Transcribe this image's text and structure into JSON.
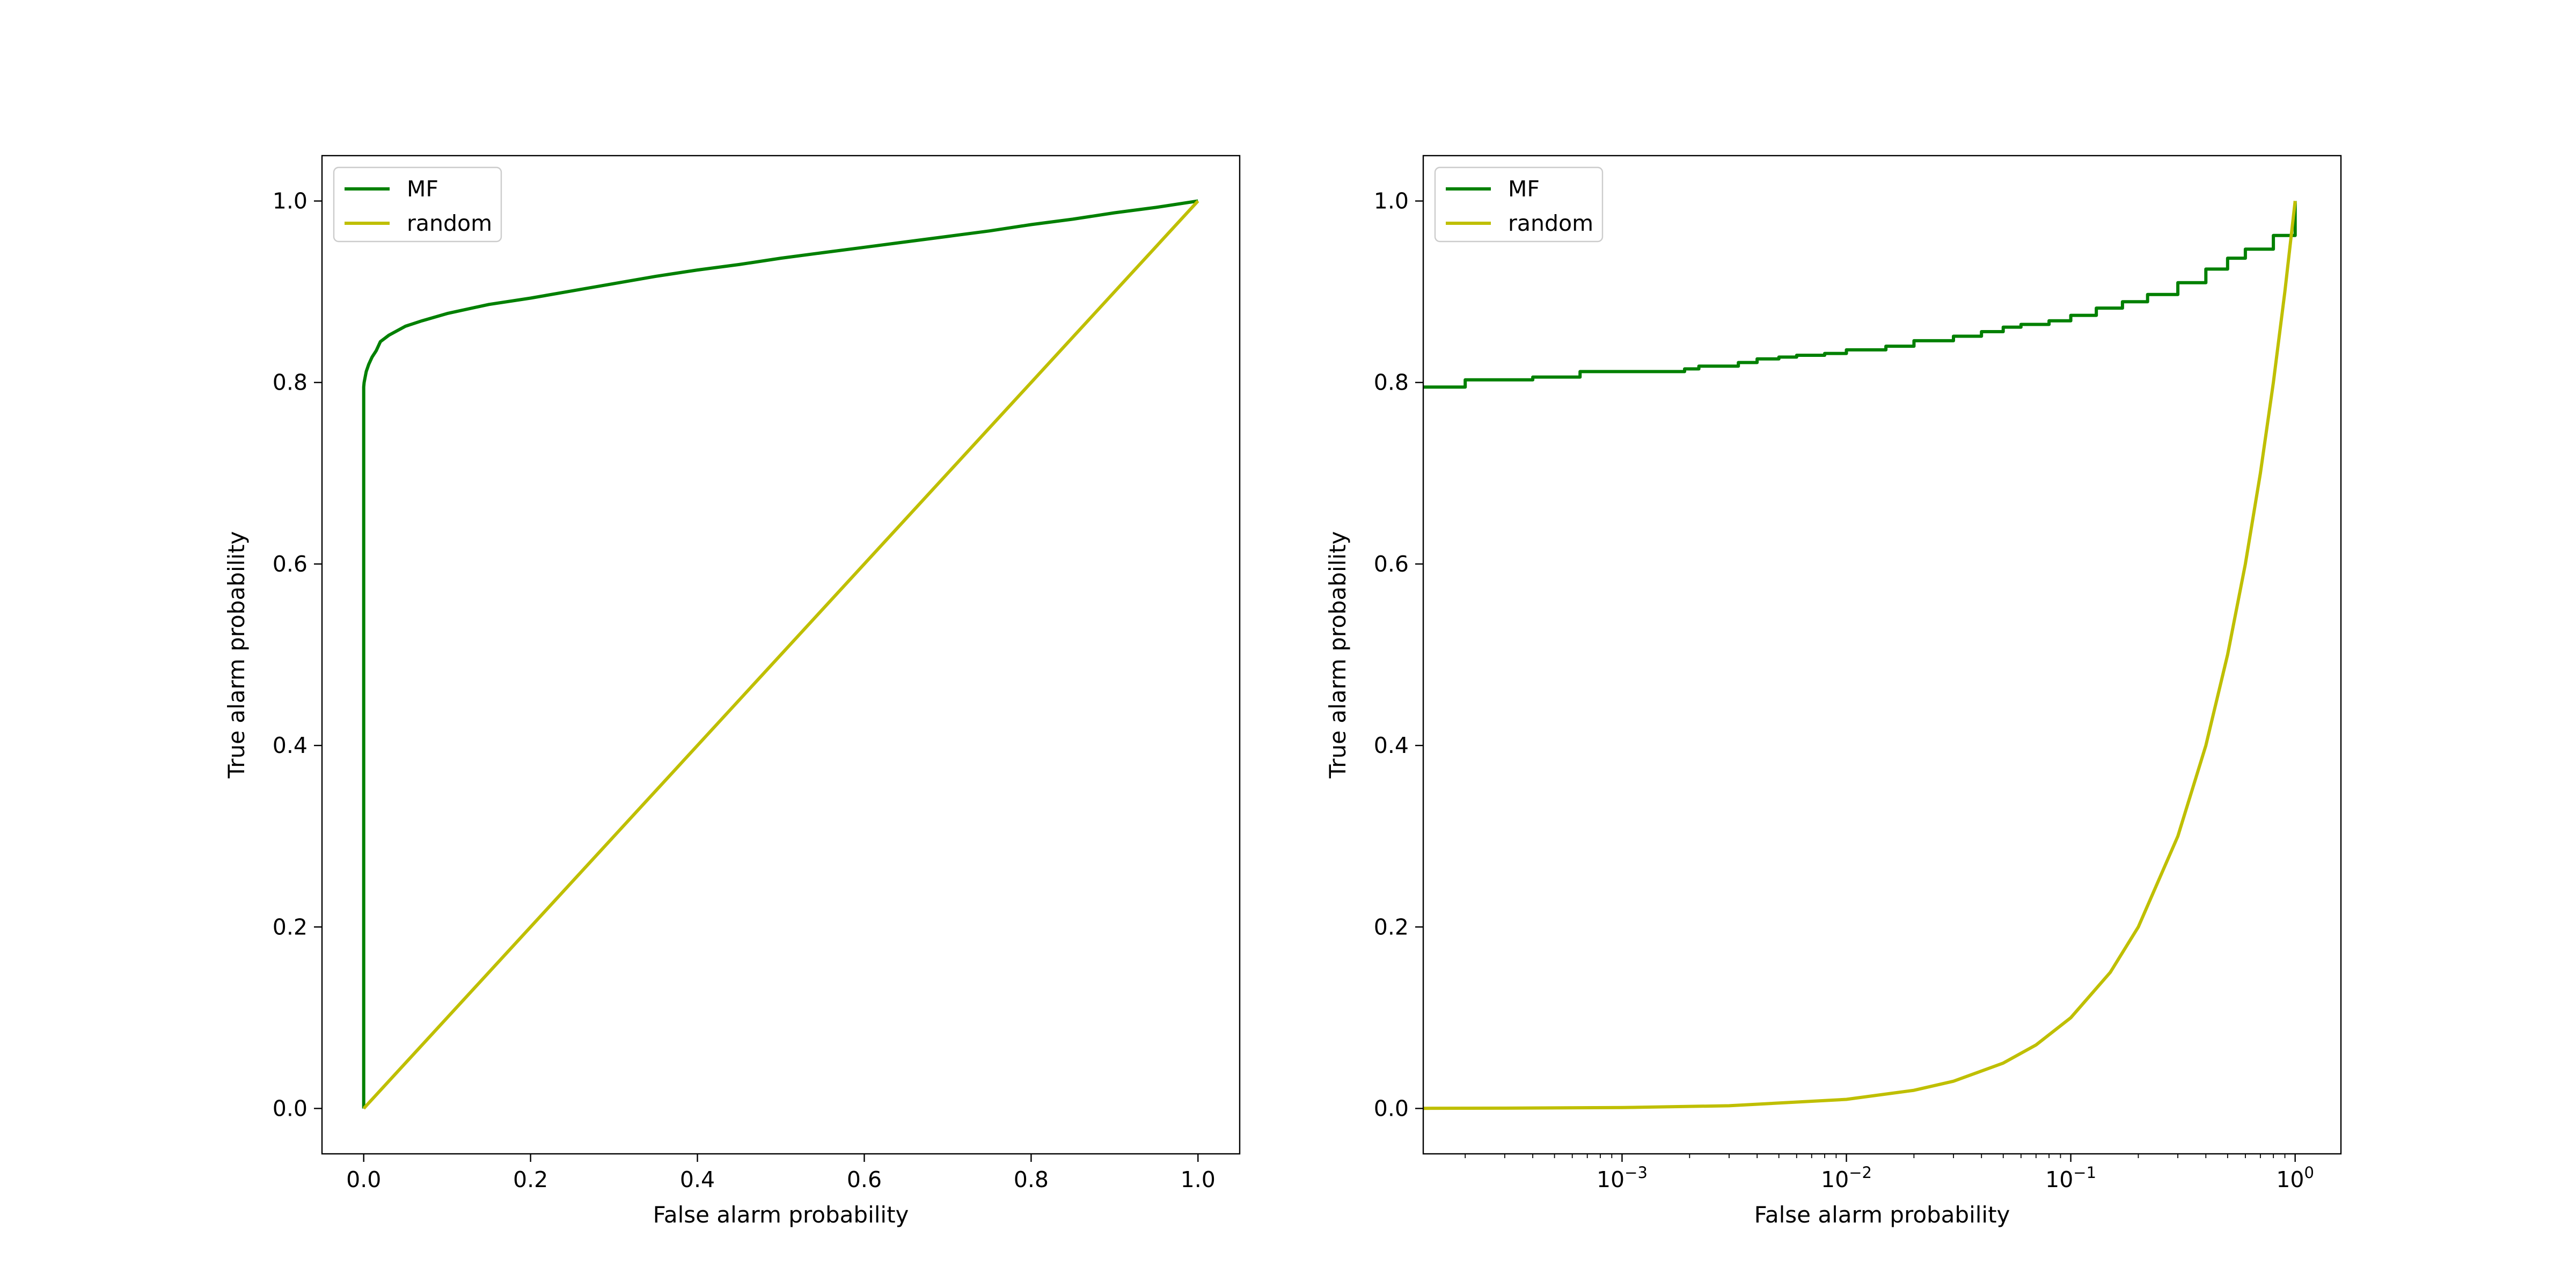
{
  "colors": {
    "MF": "#008000",
    "random": "#bfbf00"
  },
  "chart_data": [
    {
      "type": "line",
      "xlabel": "False alarm probability",
      "ylabel": "True alarm probability",
      "xscale": "linear",
      "xlim": [
        -0.05,
        1.05
      ],
      "ylim": [
        -0.05,
        1.05
      ],
      "xticks": [
        0.0,
        0.2,
        0.4,
        0.6,
        0.8,
        1.0
      ],
      "xtick_labels": [
        "0.0",
        "0.2",
        "0.4",
        "0.6",
        "0.8",
        "1.0"
      ],
      "yticks": [
        0.0,
        0.2,
        0.4,
        0.6,
        0.8,
        1.0
      ],
      "ytick_labels": [
        "0.0",
        "0.2",
        "0.4",
        "0.6",
        "0.8",
        "1.0"
      ],
      "legend": "upper-left",
      "grid": false,
      "series": [
        {
          "name": "MF",
          "color": "#008000",
          "x": [
            0.0,
            0.0,
            0.0005,
            0.0015,
            0.003,
            0.006,
            0.01,
            0.015,
            0.02,
            0.03,
            0.05,
            0.07,
            0.1,
            0.15,
            0.2,
            0.25,
            0.3,
            0.35,
            0.4,
            0.45,
            0.5,
            0.55,
            0.6,
            0.65,
            0.7,
            0.75,
            0.8,
            0.85,
            0.9,
            0.95,
            1.0
          ],
          "y": [
            0.0,
            0.795,
            0.8,
            0.805,
            0.812,
            0.82,
            0.828,
            0.835,
            0.845,
            0.852,
            0.862,
            0.868,
            0.876,
            0.886,
            0.893,
            0.901,
            0.909,
            0.917,
            0.924,
            0.93,
            0.937,
            0.943,
            0.949,
            0.955,
            0.961,
            0.967,
            0.974,
            0.98,
            0.987,
            0.993,
            1.0
          ]
        },
        {
          "name": "random",
          "color": "#bfbf00",
          "x": [
            0.0,
            1.0
          ],
          "y": [
            0.0,
            1.0
          ]
        }
      ]
    },
    {
      "type": "line",
      "xlabel": "False alarm probability",
      "ylabel": "True alarm probability",
      "xscale": "log",
      "xlim": [
        0.00013,
        1.6
      ],
      "ylim": [
        -0.05,
        1.05
      ],
      "xticks": [
        0.001,
        0.01,
        0.1,
        1
      ],
      "xtick_labels": [
        {
          "base": "10",
          "exp": "−3"
        },
        {
          "base": "10",
          "exp": "−2"
        },
        {
          "base": "10",
          "exp": "−1"
        },
        {
          "base": "10",
          "exp": "0"
        }
      ],
      "yticks": [
        0.0,
        0.2,
        0.4,
        0.6,
        0.8,
        1.0
      ],
      "ytick_labels": [
        "0.0",
        "0.2",
        "0.4",
        "0.6",
        "0.8",
        "1.0"
      ],
      "legend": "upper-left",
      "grid": false,
      "series": [
        {
          "name": "MF",
          "color": "#008000",
          "step": true,
          "x": [
            0.00013,
            0.0002,
            0.0004,
            0.00065,
            0.0019,
            0.0022,
            0.0033,
            0.004,
            0.005,
            0.006,
            0.008,
            0.01,
            0.015,
            0.02,
            0.03,
            0.04,
            0.05,
            0.06,
            0.08,
            0.1,
            0.13,
            0.17,
            0.22,
            0.3,
            0.4,
            0.5,
            0.6,
            0.8,
            1.0
          ],
          "y": [
            0.795,
            0.803,
            0.806,
            0.812,
            0.815,
            0.818,
            0.822,
            0.826,
            0.828,
            0.83,
            0.832,
            0.836,
            0.84,
            0.846,
            0.851,
            0.856,
            0.861,
            0.864,
            0.868,
            0.874,
            0.882,
            0.889,
            0.897,
            0.91,
            0.925,
            0.937,
            0.947,
            0.962,
            1.0
          ]
        },
        {
          "name": "random",
          "color": "#bfbf00",
          "x": [
            0.00013,
            0.0003,
            0.001,
            0.003,
            0.01,
            0.02,
            0.03,
            0.05,
            0.07,
            0.1,
            0.15,
            0.2,
            0.3,
            0.4,
            0.5,
            0.6,
            0.7,
            0.8,
            0.9,
            1.0
          ],
          "y": [
            0.00013,
            0.0003,
            0.001,
            0.003,
            0.01,
            0.02,
            0.03,
            0.05,
            0.07,
            0.1,
            0.15,
            0.2,
            0.3,
            0.4,
            0.5,
            0.6,
            0.7,
            0.8,
            0.9,
            1.0
          ]
        }
      ]
    }
  ]
}
